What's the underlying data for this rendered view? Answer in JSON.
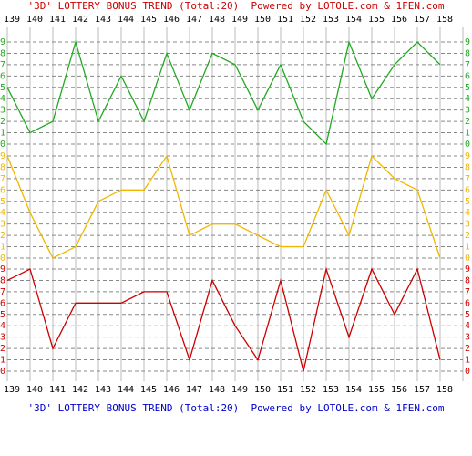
{
  "chart_data": {
    "type": "line",
    "title": "'3D' LOTTERY BONUS TREND (Total:20)  Powered by LOTOLE.com & 1FEN.com",
    "categories": [
      "139",
      "140",
      "141",
      "142",
      "143",
      "144",
      "145",
      "146",
      "147",
      "148",
      "149",
      "150",
      "151",
      "152",
      "153",
      "154",
      "155",
      "156",
      "157",
      "158"
    ],
    "ylim": [
      0,
      9
    ],
    "yticks": [
      0,
      1,
      2,
      3,
      4,
      5,
      6,
      7,
      8,
      9
    ],
    "grid": true,
    "series": [
      {
        "color": "#22aa22",
        "values": [
          5,
          1,
          2,
          9,
          2,
          6,
          2,
          8,
          3,
          8,
          7,
          3,
          7,
          2,
          0,
          9,
          4,
          7,
          9,
          7
        ]
      },
      {
        "color": "#f0b800",
        "values": [
          9,
          4,
          0,
          1,
          5,
          6,
          6,
          9,
          2,
          3,
          3,
          2,
          1,
          1,
          6,
          2,
          9,
          7,
          6,
          0
        ]
      },
      {
        "color": "#cc0000",
        "values": [
          8,
          9,
          2,
          6,
          6,
          6,
          7,
          7,
          1,
          8,
          4,
          1,
          8,
          0,
          9,
          3,
          9,
          5,
          9,
          1
        ]
      }
    ]
  }
}
